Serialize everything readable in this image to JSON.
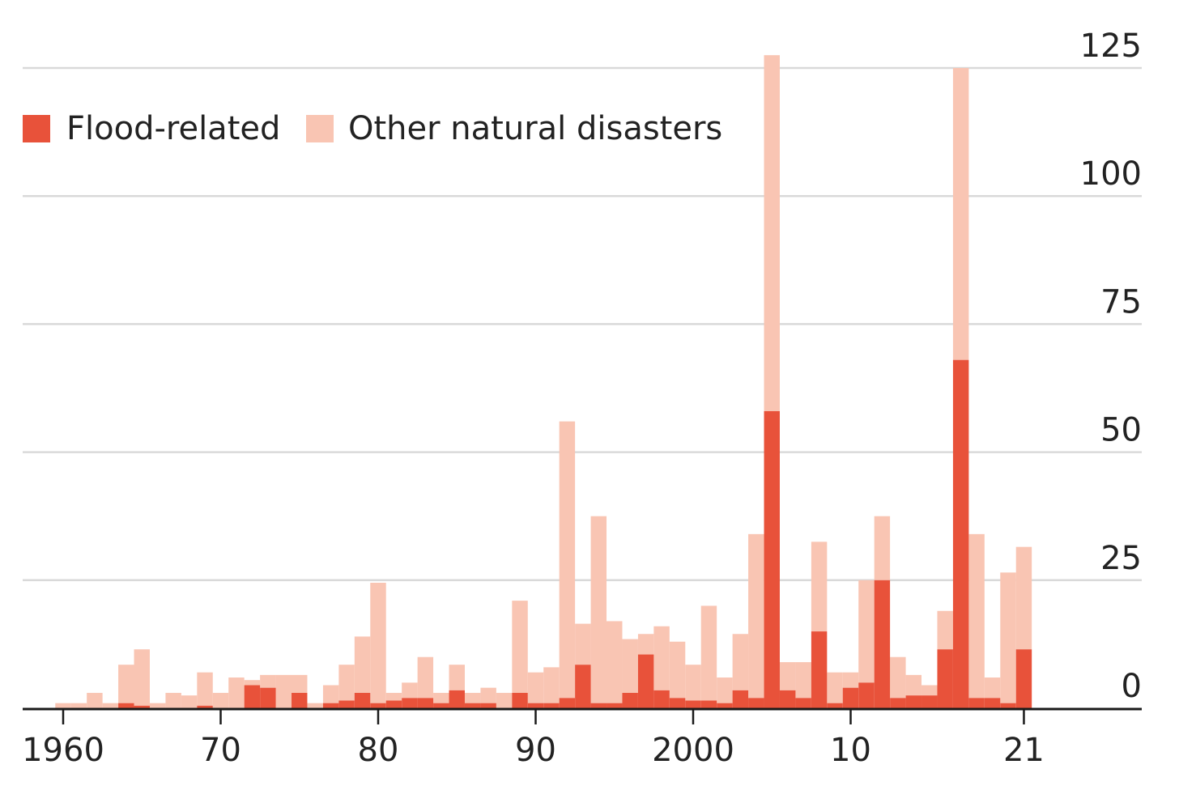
{
  "chart_data": {
    "type": "bar",
    "stacked": true,
    "orientation": "vertical",
    "x": [
      1960,
      1961,
      1962,
      1963,
      1964,
      1965,
      1966,
      1967,
      1968,
      1969,
      1970,
      1971,
      1972,
      1973,
      1974,
      1975,
      1976,
      1977,
      1978,
      1979,
      1980,
      1981,
      1982,
      1983,
      1984,
      1985,
      1986,
      1987,
      1988,
      1989,
      1990,
      1991,
      1992,
      1993,
      1994,
      1995,
      1996,
      1997,
      1998,
      1999,
      2000,
      2001,
      2002,
      2003,
      2004,
      2005,
      2006,
      2007,
      2008,
      2009,
      2010,
      2011,
      2012,
      2013,
      2014,
      2015,
      2016,
      2017,
      2018,
      2019,
      2020,
      2021
    ],
    "series": [
      {
        "name": "Flood-related",
        "color": "#e8523a",
        "values": [
          0,
          0,
          0,
          0,
          1,
          0.5,
          0,
          0,
          0,
          0.5,
          0,
          0,
          4.5,
          4,
          0,
          3,
          0,
          1,
          1.5,
          3,
          1,
          1.5,
          2,
          2,
          1,
          3.5,
          1,
          1,
          0,
          3,
          1,
          1,
          2,
          8.5,
          1,
          1,
          3,
          10.5,
          3.5,
          2,
          1.5,
          1.5,
          1,
          3.5,
          2,
          58,
          3.5,
          2,
          15,
          1,
          4,
          5,
          25,
          2,
          2.5,
          2.5,
          11.5,
          68,
          2,
          2,
          1,
          11.5
        ]
      },
      {
        "name": "Other natural disasters",
        "color": "#f9c5b3",
        "values": [
          1,
          1,
          3,
          1,
          7.5,
          11,
          1,
          3,
          2.5,
          6.5,
          3,
          6,
          1,
          2.5,
          6.5,
          3.5,
          1,
          3.5,
          7,
          11,
          23.5,
          1.5,
          3,
          8,
          2,
          5,
          2,
          3,
          3,
          18,
          6,
          7,
          54,
          8,
          36.5,
          16,
          10.5,
          4,
          12.5,
          11,
          7,
          18.5,
          5,
          11,
          32,
          69.5,
          5.5,
          7,
          17.5,
          6,
          3,
          20,
          12.5,
          8,
          4,
          2,
          7.5,
          57,
          32,
          4,
          25.5,
          20
        ]
      }
    ],
    "ylim": [
      0,
      125
    ],
    "y_ticks": [
      "0",
      "25",
      "50",
      "75",
      "100",
      "125"
    ],
    "x_tick_labels": [
      {
        "year": 1960,
        "label": "1960"
      },
      {
        "year": 1970,
        "label": "70"
      },
      {
        "year": 1980,
        "label": "80"
      },
      {
        "year": 1990,
        "label": "90"
      },
      {
        "year": 2000,
        "label": "2000"
      },
      {
        "year": 2010,
        "label": "10"
      },
      {
        "year": 2021,
        "label": "21"
      }
    ],
    "y_axis_position": "right",
    "grid": "horizontal",
    "legend_position": "top-left",
    "title": "",
    "xlabel": "",
    "ylabel": ""
  }
}
